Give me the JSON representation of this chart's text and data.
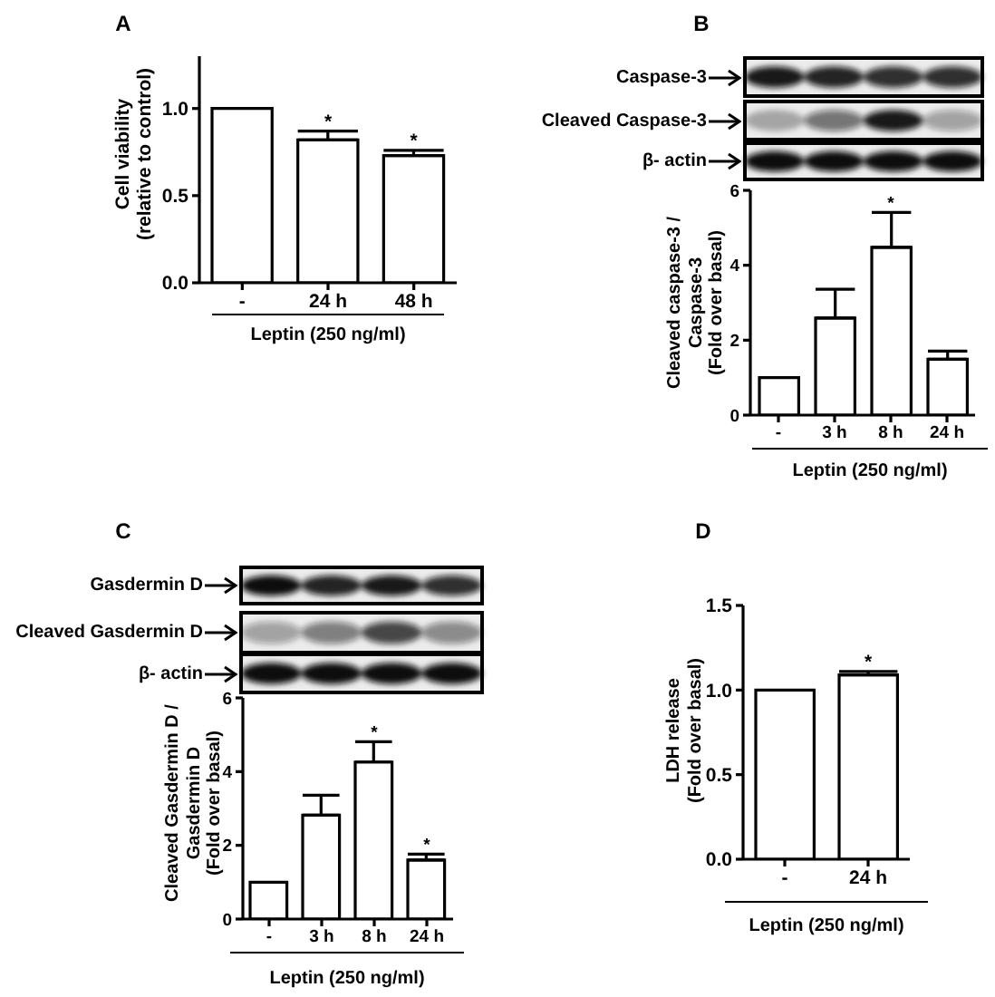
{
  "chart_data": [
    {
      "type": "bar",
      "title": "A",
      "categories": [
        "-",
        "24 h",
        "48 h"
      ],
      "series": [
        {
          "color": "#ffffff",
          "values": [
            1.0,
            0.82,
            0.73
          ],
          "errors": [
            null,
            [
              0.82,
              0.87
            ],
            [
              0.73,
              0.76
            ]
          ]
        }
      ],
      "ylim": [
        0,
        1.3
      ],
      "yticks": [
        {
          "value": 0,
          "label": "0.0"
        },
        {
          "value": 0.5,
          "label": "0.5"
        },
        {
          "value": 1,
          "label": "1.0"
        }
      ],
      "xlabel": "Leptin (250 ng/ml)",
      "ylabel": "Cell viability\n(relative to control)",
      "annotations": [
        {
          "text": "*",
          "x": "24 h",
          "y": 0.87
        },
        {
          "text": "*",
          "x": "48 h",
          "y": 0.76
        }
      ]
    },
    {
      "type": "bar",
      "title": "B",
      "categories": [
        "-",
        "3 h",
        "8 h",
        "24 h"
      ],
      "series": [
        {
          "color": "#ffffff",
          "values": [
            1.0,
            2.59,
            4.48,
            1.49
          ],
          "errors": [
            null,
            [
              2.59,
              3.36
            ],
            [
              4.48,
              5.41
            ],
            [
              1.49,
              1.71
            ]
          ]
        }
      ],
      "ylim": [
        0,
        6
      ],
      "yticks": [
        0,
        2,
        4,
        6
      ],
      "xlabel": "Leptin (250 ng/ml)",
      "ylabel": "Cleaved caspase-3 /\nCaspase-3\n(Fold over basal)",
      "annotations": [
        "Caspase-3",
        "Cleaved Caspase-3",
        "β- actin",
        {
          "text": "*",
          "x": "8 h",
          "y": 5.41
        }
      ]
    },
    {
      "type": "bar",
      "title": "C",
      "categories": [
        "-",
        "3 h",
        "8 h",
        "24 h"
      ],
      "series": [
        {
          "color": "#ffffff",
          "values": [
            1.0,
            2.82,
            4.26,
            1.6
          ],
          "errors": [
            null,
            [
              2.82,
              3.36
            ],
            [
              4.26,
              4.81
            ],
            [
              1.6,
              1.76
            ]
          ]
        }
      ],
      "ylim": [
        0,
        6
      ],
      "yticks": [
        0,
        2,
        4,
        6
      ],
      "xlabel": "Leptin (250 ng/ml)",
      "ylabel": "Cleaved Gasdermin D /\nGasdermin D\n(Fold over basal)",
      "annotations": [
        "Gasdermin D",
        "Cleaved Gasdermin D",
        "β- actin",
        {
          "text": "*",
          "x": "8 h",
          "y": 4.81
        },
        {
          "text": "*",
          "x": "24 h",
          "y": 1.76
        }
      ]
    },
    {
      "type": "bar",
      "title": "D",
      "categories": [
        "-",
        "24 h"
      ],
      "series": [
        {
          "color": "#ffffff",
          "values": [
            1.0,
            1.09
          ],
          "errors": [
            null,
            [
              1.09,
              1.11
            ]
          ]
        }
      ],
      "ylim": [
        0,
        1.5
      ],
      "yticks": [
        {
          "value": 0,
          "label": "0.0"
        },
        {
          "value": 0.5,
          "label": "0.5"
        },
        {
          "value": 1,
          "label": "1.0"
        },
        {
          "value": 1.5,
          "label": "1.5"
        }
      ],
      "xlabel": "Leptin (250 ng/ml)",
      "ylabel": "LDH release\n(Fold over basal)",
      "annotations": [
        {
          "text": "*",
          "x": "24 h",
          "y": 1.11
        }
      ]
    }
  ]
}
